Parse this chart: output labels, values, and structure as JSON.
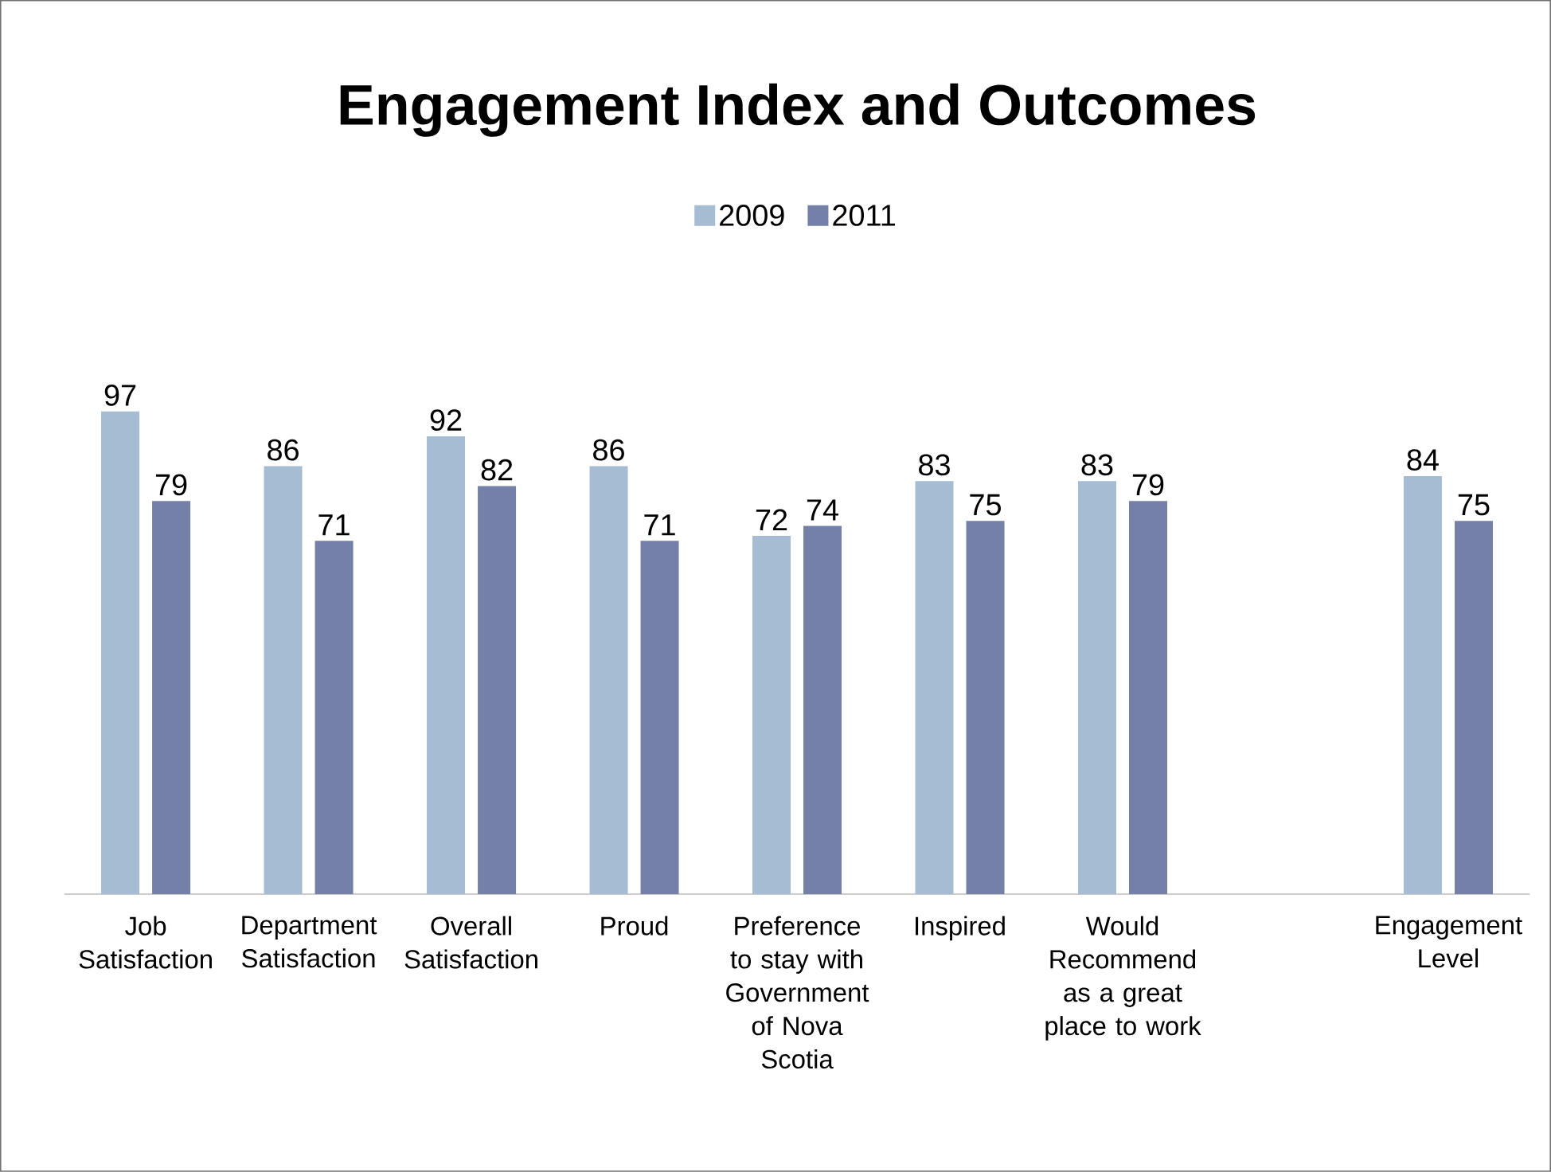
{
  "chart_data": {
    "type": "bar",
    "title": "Engagement Index and Outcomes",
    "categories": [
      "Job Satisfaction",
      "Department Satisfaction",
      "Overall Satisfaction",
      "Proud",
      "Preference to stay with Government of Nova Scotia",
      "Inspired",
      "Would Recommend as a great place to work",
      null,
      "Engagement Level"
    ],
    "series": [
      {
        "name": "2009",
        "color": "#a5bcd3",
        "values": [
          97,
          86,
          92,
          86,
          72,
          83,
          83,
          null,
          84
        ]
      },
      {
        "name": "2011",
        "color": "#7480a8",
        "values": [
          79,
          71,
          82,
          71,
          74,
          75,
          79,
          null,
          75
        ]
      }
    ],
    "data_labels": true,
    "legend": "top"
  }
}
